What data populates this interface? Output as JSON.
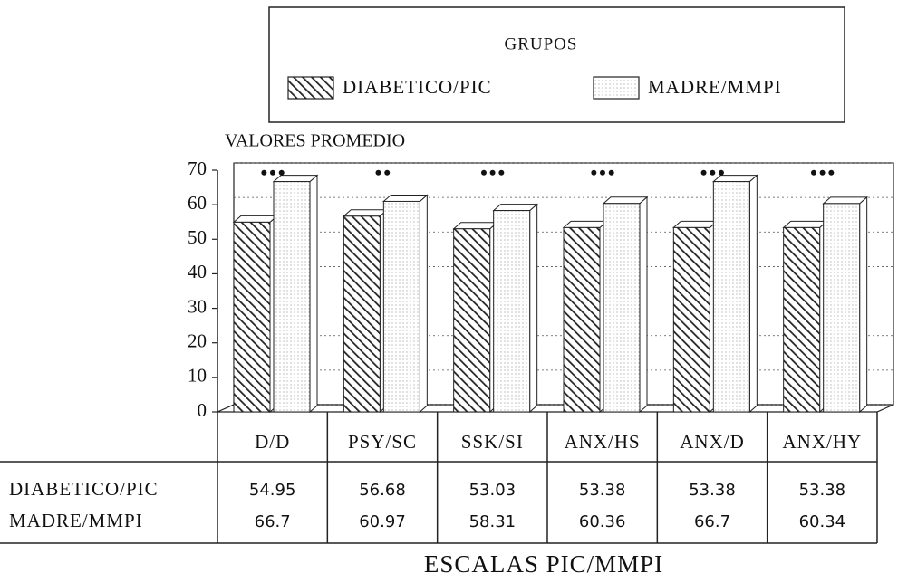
{
  "chart_data": {
    "type": "bar",
    "legend_title": "GRUPOS",
    "y_label": "VALORES PROMEDIO",
    "x_label": "ESCALAS PIC/MMPI",
    "categories": [
      "D/D",
      "PSY/SC",
      "SSK/SI",
      "ANX/HS",
      "ANX/D",
      "ANX/HY"
    ],
    "annotations": [
      "•••",
      "••",
      "•••",
      "•••",
      "•••",
      "•••"
    ],
    "series": [
      {
        "name": "DIABETICO/PIC",
        "values": [
          54.95,
          56.68,
          53.03,
          53.38,
          53.38,
          53.38
        ]
      },
      {
        "name": "MADRE/MMPI",
        "values": [
          66.7,
          60.97,
          58.31,
          60.36,
          66.7,
          60.34
        ]
      }
    ],
    "ylim": [
      0,
      70
    ],
    "yticks": [
      0,
      10,
      20,
      30,
      40,
      50,
      60,
      70
    ],
    "grid": true
  }
}
